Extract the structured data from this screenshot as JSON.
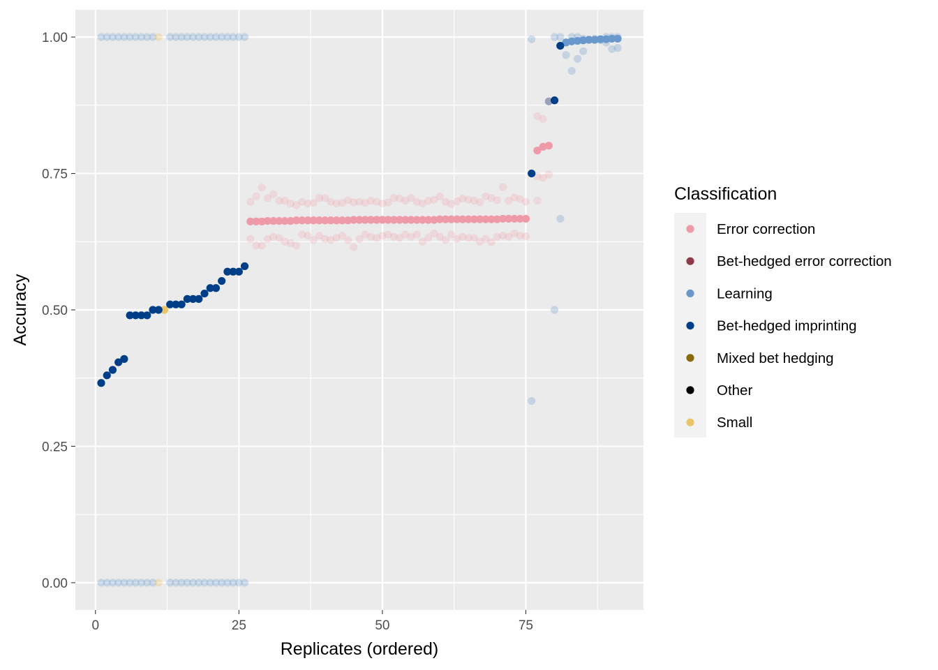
{
  "chart_data": {
    "type": "scatter",
    "xlabel": "Replicates (ordered)",
    "ylabel": "Accuracy",
    "xlim": [
      -3.5,
      95.5
    ],
    "ylim": [
      -0.05,
      1.05
    ],
    "x_ticks": [
      0,
      25,
      50,
      75
    ],
    "x_tick_labels": [
      "0",
      "25",
      "50",
      "75"
    ],
    "y_ticks": [
      0,
      0.25,
      0.5,
      0.75,
      1
    ],
    "y_tick_labels": [
      "0.00",
      "0.25",
      "0.50",
      "0.75",
      "1.00"
    ],
    "grid": true,
    "panel_background": "#ebebeb",
    "legend": {
      "title": "Classification",
      "placement": "right",
      "entries": [
        {
          "label": "Error correction",
          "color": "#ee9aa8"
        },
        {
          "label": "Bet-hedged error correction",
          "color": "#8e3a4c"
        },
        {
          "label": "Learning",
          "color": "#6a98cc"
        },
        {
          "label": "Bet-hedged imprinting",
          "color": "#003f87"
        },
        {
          "label": "Mixed bet hedging",
          "color": "#8a6a0a"
        },
        {
          "label": "Other",
          "color": "#000000"
        },
        {
          "label": "Small",
          "color": "#ebc46a"
        }
      ]
    },
    "series": [
      {
        "name": "Learning",
        "color": "#6a98cc",
        "alpha": 0.3,
        "points": [
          [
            1,
            1
          ],
          [
            2,
            1
          ],
          [
            3,
            1
          ],
          [
            4,
            1
          ],
          [
            5,
            1
          ],
          [
            6,
            1
          ],
          [
            7,
            1
          ],
          [
            8,
            1
          ],
          [
            9,
            1
          ],
          [
            10,
            1
          ],
          [
            13,
            1
          ],
          [
            14,
            1
          ],
          [
            15,
            1
          ],
          [
            16,
            1
          ],
          [
            17,
            1
          ],
          [
            18,
            1
          ],
          [
            19,
            1
          ],
          [
            20,
            1
          ],
          [
            21,
            1
          ],
          [
            22,
            1
          ],
          [
            23,
            1
          ],
          [
            24,
            1
          ],
          [
            25,
            1
          ],
          [
            26,
            1
          ],
          [
            1,
            0
          ],
          [
            2,
            0
          ],
          [
            3,
            0
          ],
          [
            4,
            0
          ],
          [
            5,
            0
          ],
          [
            6,
            0
          ],
          [
            7,
            0
          ],
          [
            8,
            0
          ],
          [
            9,
            0
          ],
          [
            10,
            0
          ],
          [
            13,
            0
          ],
          [
            14,
            0
          ],
          [
            15,
            0
          ],
          [
            16,
            0
          ],
          [
            17,
            0
          ],
          [
            18,
            0
          ],
          [
            19,
            0
          ],
          [
            20,
            0
          ],
          [
            21,
            0
          ],
          [
            22,
            0
          ],
          [
            23,
            0
          ],
          [
            24,
            0
          ],
          [
            25,
            0
          ],
          [
            26,
            0
          ],
          [
            76,
            0.996
          ],
          [
            76,
            0.333
          ],
          [
            80,
            1
          ],
          [
            80,
            0.5
          ],
          [
            81,
            1
          ],
          [
            81,
            0.667
          ],
          [
            82,
            0.967
          ],
          [
            83,
            0.938
          ],
          [
            84,
            0.96
          ],
          [
            85,
            0.974
          ],
          [
            83,
            1
          ],
          [
            84,
            1
          ],
          [
            85,
            0.997
          ],
          [
            86,
            0.995
          ],
          [
            87,
            0.997
          ],
          [
            88,
            0.994
          ],
          [
            89,
            0.99
          ],
          [
            90,
            0.978
          ],
          [
            91,
            0.98
          ],
          [
            89,
            1
          ],
          [
            90,
            1
          ],
          [
            91,
            1
          ]
        ]
      },
      {
        "name": "Learning",
        "color": "#6a98cc",
        "alpha": 1,
        "points": [
          [
            82,
            0.99
          ],
          [
            83,
            0.992
          ],
          [
            84,
            0.993
          ],
          [
            85,
            0.994
          ],
          [
            86,
            0.995
          ],
          [
            87,
            0.995
          ],
          [
            88,
            0.996
          ],
          [
            89,
            0.996
          ],
          [
            90,
            0.997
          ],
          [
            91,
            0.997
          ]
        ]
      },
      {
        "name": "Small",
        "color": "#ebc46a",
        "alpha": 0.35,
        "points": [
          [
            11,
            1
          ],
          [
            11,
            0
          ]
        ]
      },
      {
        "name": "Small",
        "color": "#ebc46a",
        "alpha": 1,
        "points": [
          [
            12,
            0.5
          ]
        ]
      },
      {
        "name": "Error correction",
        "color": "#ee9aa8",
        "alpha": 0.25,
        "points": [
          [
            27,
            0.698
          ],
          [
            28,
            0.708
          ],
          [
            29,
            0.724
          ],
          [
            30,
            0.705
          ],
          [
            31,
            0.712
          ],
          [
            32,
            0.7
          ],
          [
            33,
            0.7
          ],
          [
            34,
            0.695
          ],
          [
            35,
            0.692
          ],
          [
            36,
            0.698
          ],
          [
            37,
            0.695
          ],
          [
            38,
            0.696
          ],
          [
            39,
            0.705
          ],
          [
            40,
            0.705
          ],
          [
            41,
            0.698
          ],
          [
            42,
            0.695
          ],
          [
            43,
            0.696
          ],
          [
            44,
            0.701
          ],
          [
            45,
            0.697
          ],
          [
            46,
            0.698
          ],
          [
            47,
            0.696
          ],
          [
            48,
            0.7
          ],
          [
            49,
            0.698
          ],
          [
            50,
            0.695
          ],
          [
            51,
            0.697
          ],
          [
            52,
            0.705
          ],
          [
            53,
            0.704
          ],
          [
            54,
            0.7
          ],
          [
            55,
            0.705
          ],
          [
            56,
            0.698
          ],
          [
            57,
            0.695
          ],
          [
            58,
            0.7
          ],
          [
            59,
            0.702
          ],
          [
            60,
            0.708
          ],
          [
            61,
            0.698
          ],
          [
            62,
            0.694
          ],
          [
            63,
            0.699
          ],
          [
            64,
            0.704
          ],
          [
            65,
            0.702
          ],
          [
            66,
            0.7
          ],
          [
            67,
            0.697
          ],
          [
            68,
            0.708
          ],
          [
            69,
            0.705
          ],
          [
            70,
            0.701
          ],
          [
            71,
            0.725
          ],
          [
            72,
            0.7
          ],
          [
            73,
            0.706
          ],
          [
            74,
            0.703
          ],
          [
            75,
            0.698
          ],
          [
            27,
            0.63
          ],
          [
            28,
            0.618
          ],
          [
            29,
            0.618
          ],
          [
            30,
            0.63
          ],
          [
            31,
            0.634
          ],
          [
            32,
            0.632
          ],
          [
            33,
            0.625
          ],
          [
            34,
            0.622
          ],
          [
            35,
            0.618
          ],
          [
            36,
            0.638
          ],
          [
            37,
            0.636
          ],
          [
            38,
            0.628
          ],
          [
            39,
            0.636
          ],
          [
            40,
            0.63
          ],
          [
            41,
            0.628
          ],
          [
            42,
            0.632
          ],
          [
            43,
            0.636
          ],
          [
            44,
            0.628
          ],
          [
            45,
            0.615
          ],
          [
            46,
            0.63
          ],
          [
            47,
            0.638
          ],
          [
            48,
            0.634
          ],
          [
            49,
            0.632
          ],
          [
            50,
            0.636
          ],
          [
            51,
            0.638
          ],
          [
            52,
            0.634
          ],
          [
            53,
            0.632
          ],
          [
            54,
            0.638
          ],
          [
            55,
            0.634
          ],
          [
            56,
            0.638
          ],
          [
            57,
            0.625
          ],
          [
            58,
            0.632
          ],
          [
            59,
            0.64
          ],
          [
            60,
            0.634
          ],
          [
            61,
            0.628
          ],
          [
            62,
            0.638
          ],
          [
            63,
            0.63
          ],
          [
            64,
            0.634
          ],
          [
            65,
            0.632
          ],
          [
            66,
            0.632
          ],
          [
            67,
            0.625
          ],
          [
            68,
            0.63
          ],
          [
            69,
            0.624
          ],
          [
            70,
            0.634
          ],
          [
            71,
            0.636
          ],
          [
            72,
            0.634
          ],
          [
            73,
            0.64
          ],
          [
            74,
            0.636
          ],
          [
            75,
            0.635
          ],
          [
            77,
            0.855
          ],
          [
            78,
            0.85
          ],
          [
            79,
            0.882
          ],
          [
            77,
            0.745
          ],
          [
            78,
            0.742
          ],
          [
            79,
            0.748
          ],
          [
            77,
            0.7
          ]
        ]
      },
      {
        "name": "Error correction",
        "color": "#ee9aa8",
        "alpha": 1,
        "points": [
          [
            27,
            0.662
          ],
          [
            28,
            0.662
          ],
          [
            29,
            0.662
          ],
          [
            30,
            0.663
          ],
          [
            31,
            0.663
          ],
          [
            32,
            0.663
          ],
          [
            33,
            0.663
          ],
          [
            34,
            0.663
          ],
          [
            35,
            0.664
          ],
          [
            36,
            0.664
          ],
          [
            37,
            0.664
          ],
          [
            38,
            0.664
          ],
          [
            39,
            0.664
          ],
          [
            40,
            0.664
          ],
          [
            41,
            0.664
          ],
          [
            42,
            0.664
          ],
          [
            43,
            0.664
          ],
          [
            44,
            0.664
          ],
          [
            45,
            0.665
          ],
          [
            46,
            0.665
          ],
          [
            47,
            0.665
          ],
          [
            48,
            0.665
          ],
          [
            49,
            0.665
          ],
          [
            50,
            0.665
          ],
          [
            51,
            0.665
          ],
          [
            52,
            0.665
          ],
          [
            53,
            0.665
          ],
          [
            54,
            0.665
          ],
          [
            55,
            0.665
          ],
          [
            56,
            0.665
          ],
          [
            57,
            0.665
          ],
          [
            58,
            0.665
          ],
          [
            59,
            0.665
          ],
          [
            60,
            0.666
          ],
          [
            61,
            0.666
          ],
          [
            62,
            0.666
          ],
          [
            63,
            0.666
          ],
          [
            64,
            0.666
          ],
          [
            65,
            0.666
          ],
          [
            66,
            0.666
          ],
          [
            67,
            0.666
          ],
          [
            68,
            0.666
          ],
          [
            69,
            0.666
          ],
          [
            70,
            0.666
          ],
          [
            71,
            0.667
          ],
          [
            72,
            0.667
          ],
          [
            73,
            0.667
          ],
          [
            74,
            0.667
          ],
          [
            75,
            0.667
          ],
          [
            77,
            0.792
          ],
          [
            78,
            0.799
          ],
          [
            79,
            0.801
          ]
        ]
      },
      {
        "name": "Bet-hedged imprinting",
        "color": "#003f87",
        "alpha": 0.35,
        "points": [
          [
            79,
            0.882
          ]
        ]
      },
      {
        "name": "Bet-hedged imprinting",
        "color": "#003f87",
        "alpha": 1,
        "points": [
          [
            1,
            0.366
          ],
          [
            2,
            0.38
          ],
          [
            3,
            0.39
          ],
          [
            4,
            0.404
          ],
          [
            5,
            0.41
          ],
          [
            6,
            0.49
          ],
          [
            7,
            0.49
          ],
          [
            8,
            0.49
          ],
          [
            9,
            0.49
          ],
          [
            10,
            0.5
          ],
          [
            11,
            0.5
          ],
          [
            13,
            0.51
          ],
          [
            14,
            0.51
          ],
          [
            15,
            0.51
          ],
          [
            16,
            0.52
          ],
          [
            17,
            0.52
          ],
          [
            18,
            0.52
          ],
          [
            19,
            0.53
          ],
          [
            20,
            0.54
          ],
          [
            21,
            0.54
          ],
          [
            22,
            0.553
          ],
          [
            23,
            0.57
          ],
          [
            24,
            0.57
          ],
          [
            25,
            0.57
          ],
          [
            26,
            0.58
          ],
          [
            76,
            0.75
          ],
          [
            80,
            0.884
          ],
          [
            81,
            0.984
          ]
        ]
      }
    ]
  }
}
